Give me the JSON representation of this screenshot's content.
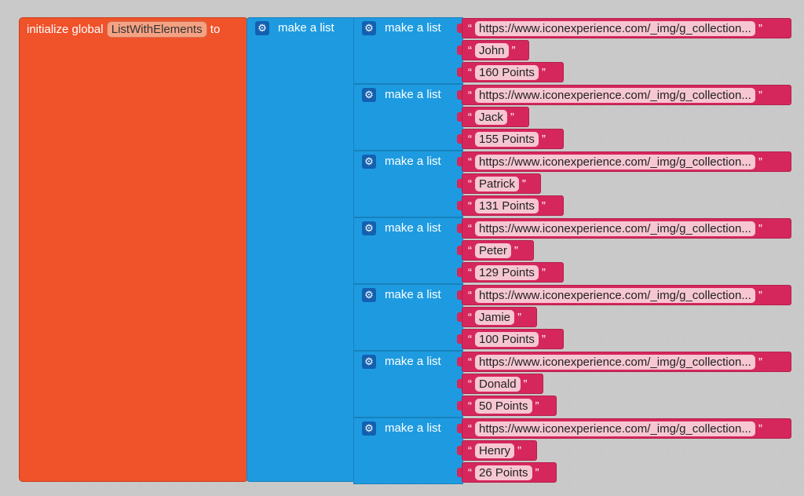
{
  "init_block": {
    "prefix": "initialize global",
    "variable": "ListWithElements",
    "suffix": "to"
  },
  "outer_list": {
    "label": "make a list"
  },
  "inner_lists": [
    {
      "label": "make a list",
      "items": [
        "https://www.iconexperience.com/_img/g_collection...",
        "John",
        "160 Points"
      ]
    },
    {
      "label": "make a list",
      "items": [
        "https://www.iconexperience.com/_img/g_collection...",
        "Jack",
        "155 Points"
      ]
    },
    {
      "label": "make a list",
      "items": [
        "https://www.iconexperience.com/_img/g_collection...",
        "Patrick",
        "131 Points"
      ]
    },
    {
      "label": "make a list",
      "items": [
        "https://www.iconexperience.com/_img/g_collection...",
        "Peter",
        "129 Points"
      ]
    },
    {
      "label": "make a list",
      "items": [
        "https://www.iconexperience.com/_img/g_collection...",
        "Jamie",
        "100 Points"
      ]
    },
    {
      "label": "make a list",
      "items": [
        "https://www.iconexperience.com/_img/g_collection...",
        "Donald",
        "50 Points"
      ]
    },
    {
      "label": "make a list",
      "items": [
        "https://www.iconexperience.com/_img/g_collection...",
        "Henry",
        "26 Points"
      ]
    }
  ],
  "quote_open": "“",
  "quote_close": "”",
  "colors": {
    "init_block": "#f0522a",
    "list_block": "#1e9be0",
    "text_block": "#d6275c",
    "workspace": "#ffffff"
  },
  "icons": {
    "mutator": "gear-icon"
  }
}
